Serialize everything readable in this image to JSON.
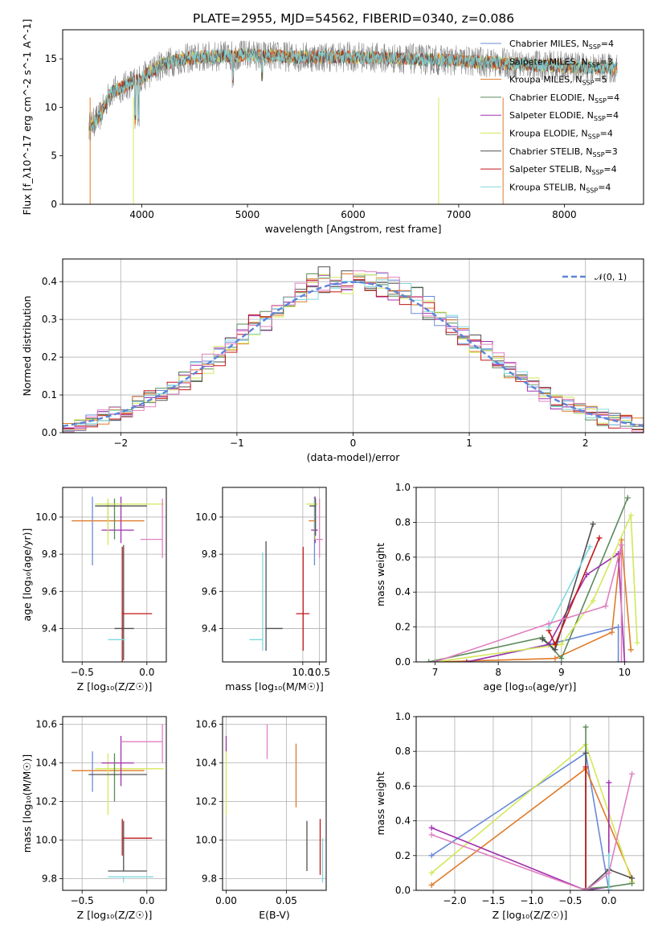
{
  "figure_title": "PLATE=2955, MJD=54562, FIBERID=0340, z=0.086",
  "colors": {
    "Chabrier MILES": "#6a8bd8",
    "Salpeter MILES": "#8a9a8a",
    "Kroupa MILES": "#e07b2a",
    "Chabrier ELODIE": "#5a8a5a",
    "Salpeter ELODIE": "#a030b0",
    "Kroupa ELODIE": "#d4e85a",
    "Chabrier STELIB": "#505050",
    "Salpeter STELIB": "#c01818",
    "Kroupa STELIB": "#80d8e0",
    "extra pink": "#e080c0",
    "data": "#808080",
    "normal": "#5b85d9"
  },
  "chart_data": [
    {
      "type": "line",
      "id": "spectrum",
      "xlabel": "wavelength [Angstrom, rest frame]",
      "ylabel": "Flux [f_λ10^-17 erg cm^-2 s^-1 A^-1]",
      "xlim": [
        3250,
        8750
      ],
      "ylim": [
        0,
        18
      ],
      "xticks": [
        "4000",
        "5000",
        "6000",
        "7000",
        "8000"
      ],
      "yticks": [
        "0",
        "5",
        "10",
        "15"
      ],
      "grid": false,
      "legend_position": "top-right",
      "legend": [
        {
          "name": "Chabrier MILES",
          "nssp": "4"
        },
        {
          "name": "Salpeter MILES",
          "nssp": "3"
        },
        {
          "name": "Kroupa MILES",
          "nssp": "5"
        },
        {
          "name": "Chabrier ELODIE",
          "nssp": "4"
        },
        {
          "name": "Salpeter ELODIE",
          "nssp": "4"
        },
        {
          "name": "Kroupa ELODIE",
          "nssp": "4"
        },
        {
          "name": "Chabrier STELIB",
          "nssp": "3"
        },
        {
          "name": "Salpeter STELIB",
          "nssp": "4"
        },
        {
          "name": "Kroupa STELIB",
          "nssp": "4"
        }
      ],
      "continuum": {
        "x": [
          3500,
          3600,
          3700,
          3800,
          3900,
          4000,
          4100,
          4200,
          4400,
          4600,
          4800,
          5000,
          5200,
          5500,
          6000,
          6500,
          7000,
          7500,
          8000,
          8500
        ],
        "y": [
          8.0,
          9.0,
          11.5,
          12.0,
          12.5,
          13.0,
          13.8,
          14.5,
          15.0,
          15.2,
          15.3,
          15.4,
          15.3,
          15.2,
          15.2,
          15.0,
          14.8,
          14.5,
          14.2,
          14.0
        ]
      }
    },
    {
      "type": "line",
      "id": "residuals",
      "xlabel": "(data-model)/error",
      "ylabel": "Normed distribution",
      "xlim": [
        -2.5,
        2.5
      ],
      "ylim": [
        0,
        0.46
      ],
      "xticks": [
        "−2",
        "−1",
        "0",
        "1",
        "2"
      ],
      "yticks": [
        "0.0",
        "0.1",
        "0.2",
        "0.3",
        "0.4"
      ],
      "grid": true,
      "legend_position": "top-right",
      "legend_label": "𝒩(0, 1)",
      "bin_width": 0.1
    },
    {
      "type": "scatter",
      "id": "age-vs-Z",
      "xlabel": "Z [log₁₀(Z/Z☉)]",
      "ylabel": "age  [log₁₀(age/yr)]",
      "xlim": [
        -0.65,
        0.15
      ],
      "ylim": [
        9.22,
        10.16
      ],
      "xticks": [
        "−0.5",
        "0.0"
      ],
      "yticks": [
        "9.4",
        "9.6",
        "9.8",
        "10.0"
      ],
      "grid": true,
      "points": [
        {
          "model": "Chabrier MILES",
          "x": -0.42,
          "y": 9.93,
          "xlo": -0.42,
          "xhi": -0.42,
          "ylo": 9.74,
          "yhi": 10.11
        },
        {
          "model": "Salpeter MILES",
          "x": -0.3,
          "y": 10.0,
          "xlo": -0.3,
          "xhi": -0.3,
          "ylo": 9.92,
          "yhi": 10.08
        },
        {
          "model": "Kroupa MILES",
          "x": -0.3,
          "y": 9.98,
          "xlo": -0.58,
          "xhi": -0.02,
          "ylo": 9.98,
          "yhi": 9.98
        },
        {
          "model": "Chabrier ELODIE",
          "x": -0.25,
          "y": 9.99,
          "xlo": -0.25,
          "xhi": -0.25,
          "ylo": 9.88,
          "yhi": 10.1
        },
        {
          "model": "Salpeter ELODIE",
          "x": -0.2,
          "y": 9.93,
          "xlo": -0.35,
          "xhi": -0.1,
          "ylo": 9.86,
          "yhi": 10.11
        },
        {
          "model": "Kroupa ELODIE",
          "x": -0.3,
          "y": 10.07,
          "xlo": -0.4,
          "xhi": 0.13,
          "ylo": 9.85,
          "yhi": 10.1
        },
        {
          "model": "Chabrier STELIB",
          "x": -0.18,
          "y": 9.4,
          "xlo": -0.25,
          "xhi": -0.1,
          "ylo": 9.23,
          "yhi": 9.85
        },
        {
          "model": "Salpeter STELIB",
          "x": -0.19,
          "y": 9.48,
          "xlo": -0.19,
          "xhi": 0.04,
          "ylo": 9.22,
          "yhi": 9.84
        },
        {
          "model": "Kroupa STELIB",
          "x": -0.18,
          "y": 9.34,
          "xlo": -0.3,
          "xhi": -0.17,
          "ylo": 9.34,
          "yhi": 9.34
        },
        {
          "model": "Chabrier STELIB",
          "x": -0.25,
          "y": 10.06,
          "xlo": -0.4,
          "xhi": 0.0,
          "ylo": 10.06,
          "yhi": 10.06
        },
        {
          "model": "extra pink",
          "x": 0.12,
          "y": 9.88,
          "xlo": -0.05,
          "xhi": 0.12,
          "ylo": 9.78,
          "yhi": 10.1
        }
      ]
    },
    {
      "type": "scatter",
      "id": "age-vs-mass",
      "xlabel": "mass [log₁₀(M/M☉)]",
      "ylabel": "",
      "xlim": [
        7.6,
        10.7
      ],
      "ylim": [
        9.22,
        10.16
      ],
      "xticks": [
        "10.0",
        "10.5"
      ],
      "yticks": [
        "9.4",
        "9.6",
        "9.8",
        "10.0"
      ],
      "grid": true,
      "points": [
        {
          "model": "Chabrier MILES",
          "x": 10.35,
          "y": 9.93,
          "xlo": 10.35,
          "xhi": 10.35,
          "ylo": 9.74,
          "yhi": 10.11
        },
        {
          "model": "Kroupa MILES",
          "x": 10.36,
          "y": 9.98,
          "xlo": 10.18,
          "xhi": 10.4,
          "ylo": 9.98,
          "yhi": 9.98
        },
        {
          "model": "Salpeter ELODIE",
          "x": 10.37,
          "y": 9.93,
          "xlo": 10.25,
          "xhi": 10.45,
          "ylo": 9.86,
          "yhi": 10.11
        },
        {
          "model": "Kroupa ELODIE",
          "x": 10.37,
          "y": 10.07,
          "xlo": 10.1,
          "xhi": 10.45,
          "ylo": 9.88,
          "yhi": 10.1
        },
        {
          "model": "Chabrier STELIB",
          "x": 10.38,
          "y": 10.06,
          "xlo": 10.2,
          "xhi": 10.4,
          "ylo": 9.9,
          "yhi": 10.1
        },
        {
          "model": "Chabrier STELIB",
          "x": 8.9,
          "y": 9.4,
          "xlo": 8.9,
          "xhi": 9.4,
          "ylo": 9.28,
          "yhi": 9.87
        },
        {
          "model": "Salpeter STELIB",
          "x": 10.01,
          "y": 9.48,
          "xlo": 9.8,
          "xhi": 10.2,
          "ylo": 9.28,
          "yhi": 9.84
        },
        {
          "model": "Kroupa STELIB",
          "x": 8.8,
          "y": 9.34,
          "xlo": 8.4,
          "xhi": 8.8,
          "ylo": 9.28,
          "yhi": 9.81
        },
        {
          "model": "extra pink",
          "x": 10.5,
          "y": 9.88,
          "xlo": 10.4,
          "xhi": 10.6,
          "ylo": 9.78,
          "yhi": 10.1
        }
      ]
    },
    {
      "type": "line",
      "id": "massweight-vs-age",
      "xlabel": "age  [log₁₀(age/yr)]",
      "ylabel": "mass weight",
      "xlim": [
        6.7,
        10.3
      ],
      "ylim": [
        0,
        1.0
      ],
      "xticks": [
        "7",
        "8",
        "9",
        "10"
      ],
      "yticks": [
        "0.0",
        "0.2",
        "0.4",
        "0.6",
        "0.8",
        "1.0"
      ],
      "grid": true,
      "series": [
        {
          "model": "Chabrier MILES",
          "x": [
            7.5,
            8.8,
            9.9,
            9.9
          ],
          "y": [
            0.0,
            0.1,
            0.2,
            0.0
          ]
        },
        {
          "model": "Kroupa MILES",
          "x": [
            7.0,
            8.9,
            9.8,
            9.95,
            10.1
          ],
          "y": [
            0.0,
            0.02,
            0.17,
            0.7,
            0.07
          ]
        },
        {
          "model": "Chabrier ELODIE",
          "x": [
            6.9,
            8.7,
            9.0,
            10.05
          ],
          "y": [
            0.0,
            0.14,
            0.02,
            0.94
          ]
        },
        {
          "model": "Salpeter ELODIE",
          "x": [
            7.5,
            8.8,
            9.4,
            9.9,
            10.0
          ],
          "y": [
            0.0,
            0.1,
            0.5,
            0.62,
            0.0
          ]
        },
        {
          "model": "Kroupa ELODIE",
          "x": [
            7.0,
            9.0,
            9.5,
            10.1,
            10.2
          ],
          "y": [
            0.0,
            0.1,
            0.35,
            0.84,
            0.11
          ]
        },
        {
          "model": "Chabrier STELIB",
          "x": [
            8.7,
            8.9,
            9.5
          ],
          "y": [
            0.13,
            0.07,
            0.79
          ]
        },
        {
          "model": "Salpeter STELIB",
          "x": [
            8.8,
            8.9,
            9.6
          ],
          "y": [
            0.18,
            0.1,
            0.71
          ]
        },
        {
          "model": "Kroupa STELIB",
          "x": [
            8.8,
            9.45
          ],
          "y": [
            0.2,
            0.66
          ]
        },
        {
          "model": "extra pink",
          "x": [
            7.0,
            8.8,
            9.7,
            9.95,
            9.95
          ],
          "y": [
            0.0,
            0.22,
            0.32,
            0.67,
            0.0
          ]
        }
      ]
    },
    {
      "type": "scatter",
      "id": "mass-vs-Z",
      "xlabel": "Z [log₁₀(Z/Z☉)]",
      "ylabel": "mass [log₁₀(M/M☉)]",
      "xlim": [
        -0.65,
        0.15
      ],
      "ylim": [
        9.74,
        10.64
      ],
      "xticks": [
        "−0.5",
        "0.0"
      ],
      "yticks": [
        "9.8",
        "10.0",
        "10.2",
        "10.4",
        "10.6"
      ],
      "grid": true,
      "points": [
        {
          "model": "Chabrier MILES",
          "x": -0.42,
          "y": 10.36,
          "xlo": -0.42,
          "xhi": -0.42,
          "ylo": 10.25,
          "yhi": 10.46
        },
        {
          "model": "Kroupa MILES",
          "x": -0.3,
          "y": 10.36,
          "xlo": -0.58,
          "xhi": -0.02,
          "ylo": 10.36,
          "yhi": 10.36
        },
        {
          "model": "Kroupa ELODIE",
          "x": -0.3,
          "y": 10.37,
          "xlo": -0.4,
          "xhi": 0.13,
          "ylo": 10.13,
          "yhi": 10.45
        },
        {
          "model": "Salpeter ELODIE",
          "x": -0.2,
          "y": 10.4,
          "xlo": -0.35,
          "xhi": -0.1,
          "ylo": 10.28,
          "yhi": 10.54
        },
        {
          "model": "Chabrier ELODIE",
          "x": -0.25,
          "y": 10.33,
          "xlo": -0.25,
          "xhi": -0.25,
          "ylo": 10.2,
          "yhi": 10.45
        },
        {
          "model": "Chabrier STELIB",
          "x": -0.25,
          "y": 10.34,
          "xlo": -0.45,
          "xhi": 0.0,
          "ylo": 10.34,
          "yhi": 10.34
        },
        {
          "model": "Salpeter STELIB",
          "x": -0.19,
          "y": 10.01,
          "xlo": -0.19,
          "xhi": 0.04,
          "ylo": 9.92,
          "yhi": 10.11
        },
        {
          "model": "Chabrier STELIB",
          "x": -0.18,
          "y": 9.84,
          "xlo": -0.3,
          "xhi": 0.0,
          "ylo": 9.84,
          "yhi": 10.1
        },
        {
          "model": "Kroupa STELIB",
          "x": -0.18,
          "y": 9.81,
          "xlo": -0.3,
          "xhi": 0.05,
          "ylo": 9.78,
          "yhi": 9.81
        },
        {
          "model": "extra pink",
          "x": 0.12,
          "y": 10.51,
          "xlo": -0.2,
          "xhi": 0.12,
          "ylo": 10.4,
          "yhi": 10.6
        }
      ]
    },
    {
      "type": "scatter",
      "id": "mass-vs-ebv",
      "xlabel": "E(B-V)",
      "ylabel": "",
      "xlim": [
        -0.003,
        0.083
      ],
      "ylim": [
        9.74,
        10.64
      ],
      "xticks": [
        "0.00",
        "0.05"
      ],
      "yticks": [
        "9.8",
        "10.0",
        "10.2",
        "10.4",
        "10.6"
      ],
      "grid": true,
      "points": [
        {
          "model": "Kroupa ELODIE",
          "x": 0.0,
          "y": 10.33,
          "ylo": 10.13,
          "yhi": 10.5
        },
        {
          "model": "Salpeter ELODIE",
          "x": 0.0,
          "y": 10.5,
          "ylo": 10.46,
          "yhi": 10.54
        },
        {
          "model": "extra pink",
          "x": 0.034,
          "y": 10.51,
          "ylo": 10.42,
          "yhi": 10.6
        },
        {
          "model": "Kroupa MILES",
          "x": 0.058,
          "y": 10.33,
          "ylo": 10.17,
          "yhi": 10.5
        },
        {
          "model": "Chabrier STELIB",
          "x": 0.067,
          "y": 9.97,
          "ylo": 9.84,
          "yhi": 10.1
        },
        {
          "model": "Salpeter STELIB",
          "x": 0.078,
          "y": 9.97,
          "ylo": 9.82,
          "yhi": 10.11
        },
        {
          "model": "Kroupa STELIB",
          "x": 0.08,
          "y": 9.89,
          "ylo": 9.78,
          "yhi": 10.01
        }
      ]
    },
    {
      "type": "line",
      "id": "massweight-vs-Z",
      "xlabel": "Z [log₁₀(Z/Z☉)]",
      "ylabel": "mass weight",
      "xlim": [
        -2.5,
        0.45
      ],
      "ylim": [
        0,
        1.0
      ],
      "xticks": [
        "−2.0",
        "−1.5",
        "−1.0",
        "−0.5",
        "0.0"
      ],
      "yticks": [
        "0.0",
        "0.2",
        "0.4",
        "0.6",
        "0.8",
        "1.0"
      ],
      "grid": true,
      "series": [
        {
          "model": "Chabrier MILES",
          "x": [
            -2.3,
            -0.3,
            0.0
          ],
          "y": [
            0.2,
            0.79,
            0.0
          ]
        },
        {
          "model": "Kroupa MILES",
          "x": [
            -2.3,
            -0.3,
            0.3
          ],
          "y": [
            0.03,
            0.7,
            0.07
          ]
        },
        {
          "model": "Kroupa ELODIE",
          "x": [
            -2.3,
            -0.3,
            0.3
          ],
          "y": [
            0.1,
            0.84,
            0.05
          ]
        },
        {
          "model": "Salpeter ELODIE",
          "x": [
            -2.3,
            -0.3,
            0.0,
            0.0
          ],
          "y": [
            0.36,
            0.0,
            0.02,
            0.62
          ]
        },
        {
          "model": "Chabrier ELODIE",
          "x": [
            -0.3,
            -0.3,
            0.0,
            0.3
          ],
          "y": [
            0.94,
            0.01,
            0.02,
            0.04
          ]
        },
        {
          "model": "Chabrier STELIB",
          "x": [
            -0.3,
            -0.3,
            0.0,
            0.3
          ],
          "y": [
            0.79,
            0.0,
            0.12,
            0.07
          ]
        },
        {
          "model": "Salpeter STELIB",
          "x": [
            -0.3,
            -0.3
          ],
          "y": [
            0.71,
            0.0
          ]
        },
        {
          "model": "Kroupa STELIB",
          "x": [
            0.0,
            0.0
          ],
          "y": [
            0.2,
            0.0
          ]
        },
        {
          "model": "extra pink",
          "x": [
            -2.3,
            -0.3,
            0.0,
            0.3
          ],
          "y": [
            0.32,
            0.0,
            0.1,
            0.67
          ]
        }
      ]
    }
  ]
}
